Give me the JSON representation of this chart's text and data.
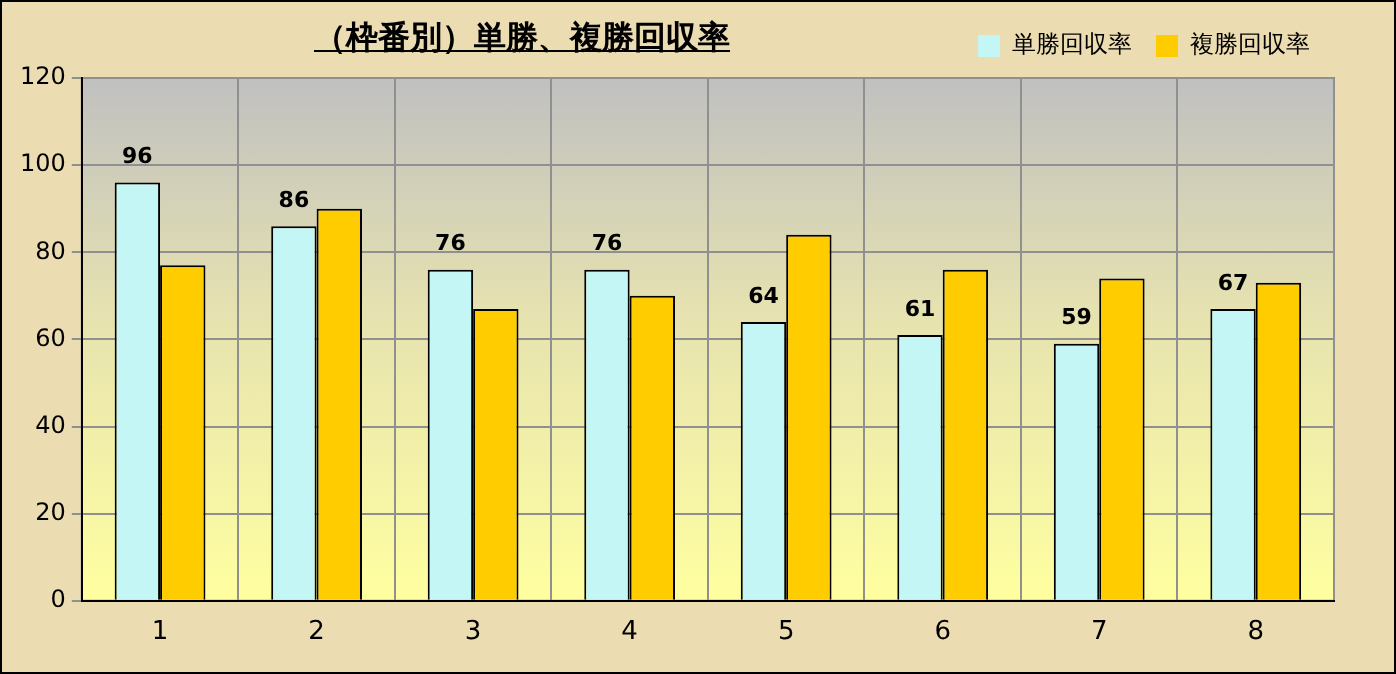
{
  "chart_data": {
    "type": "bar",
    "title": "（枠番別）単勝、複勝回収率",
    "categories": [
      "1",
      "2",
      "3",
      "4",
      "5",
      "6",
      "7",
      "8"
    ],
    "series": [
      {
        "name": "単勝回収率",
        "color": "#c4f6f6",
        "values": [
          96,
          86,
          76,
          76,
          64,
          61,
          59,
          67
        ],
        "value_labels": [
          "96",
          "86",
          "76",
          "76",
          "64",
          "61",
          "59",
          "67"
        ]
      },
      {
        "name": "複勝回収率",
        "color": "#ffcc00",
        "values": [
          77,
          90,
          67,
          70,
          84,
          76,
          74,
          73
        ]
      }
    ],
    "ylim": [
      0,
      120
    ],
    "yticks": [
      0,
      20,
      40,
      60,
      80,
      100,
      120
    ],
    "grid": true,
    "legend": "top right"
  }
}
